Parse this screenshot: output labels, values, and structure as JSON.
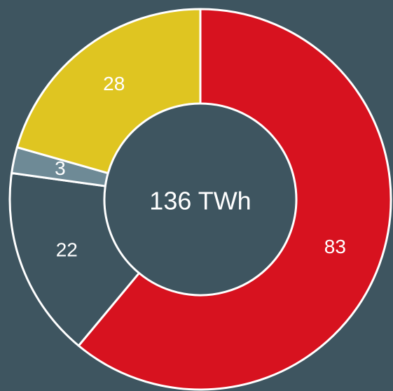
{
  "chart_data": {
    "type": "donut",
    "center_label": "136 TWh",
    "values": [
      83,
      22,
      3,
      28
    ],
    "colors": [
      "#d7121f",
      "#3e5560",
      "#6e8a96",
      "#dfc521"
    ]
  }
}
